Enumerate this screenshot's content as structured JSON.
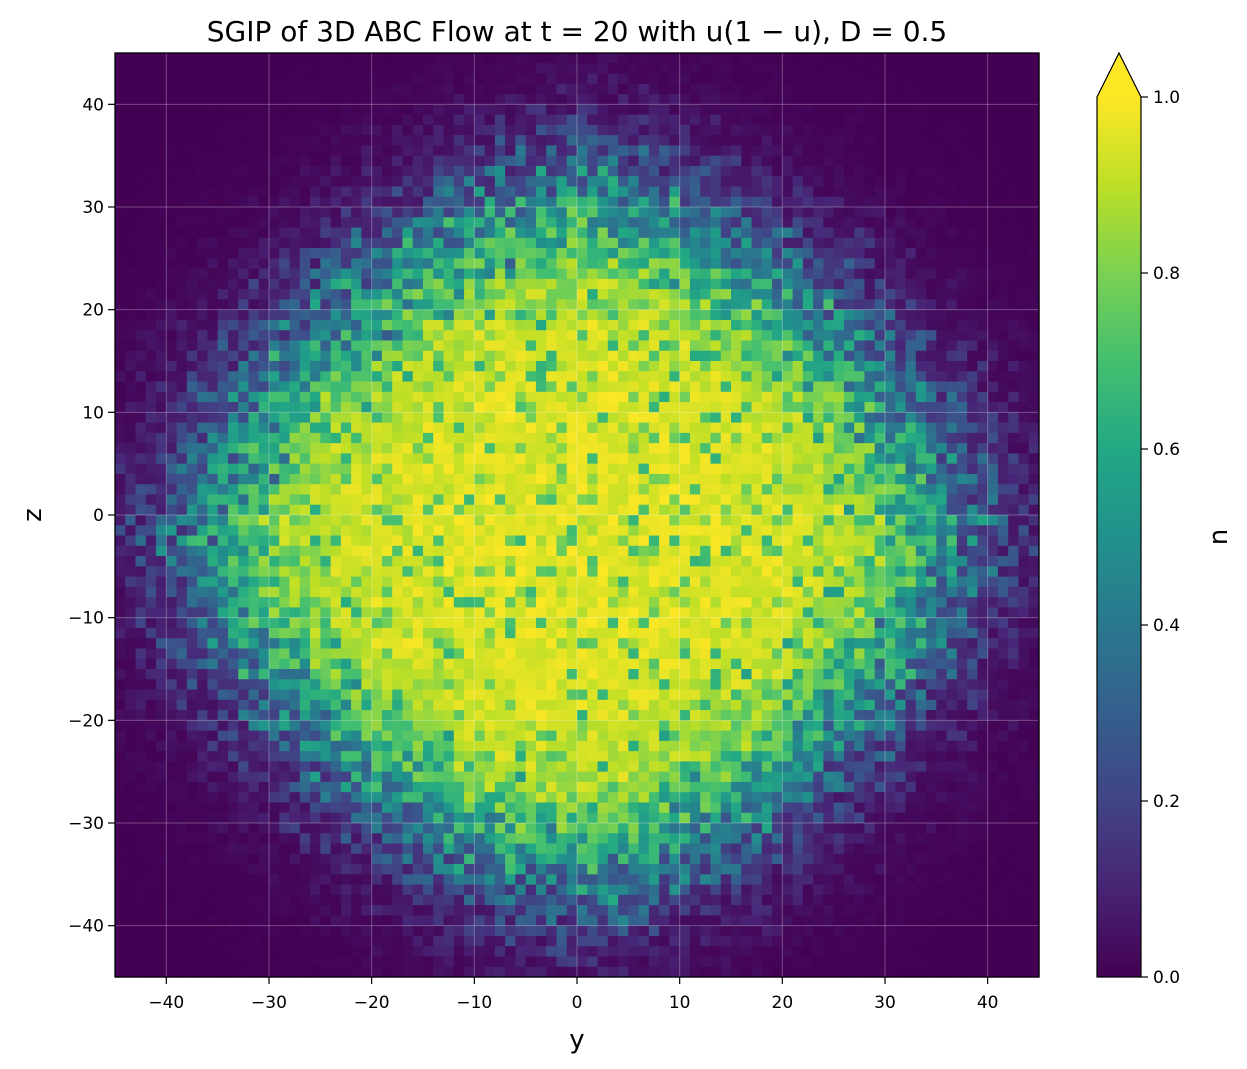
{
  "chart_data": {
    "type": "heatmap",
    "title": "SGIP of 3D ABC Flow at t = 20 with u(1 − u), D = 0.5",
    "xlabel": "y",
    "ylabel": "z",
    "xlim": [
      -45,
      45
    ],
    "ylim": [
      -45,
      45
    ],
    "x_ticks": [
      "−40",
      "−30",
      "−20",
      "−10",
      "0",
      "10",
      "20",
      "30",
      "40"
    ],
    "y_ticks": [
      "40",
      "30",
      "20",
      "10",
      "0",
      "−10",
      "−20",
      "−30",
      "−40"
    ],
    "grid": true,
    "grid_resolution": 90,
    "colormap": "viridis",
    "colorbar": {
      "label": "u",
      "range": [
        0.0,
        1.0
      ],
      "ticks": [
        "1.0",
        "0.8",
        "0.6",
        "0.4",
        "0.2",
        "0.0"
      ],
      "extend": "max"
    },
    "field": {
      "description": "noisy invasion front, u≈1 inside a roughly diamond/elliptic region centered near (0, −2), decaying to 0 outside",
      "center": [
        0,
        -2
      ],
      "half_width_y": 36,
      "half_width_z": 33,
      "front_width": 6
    }
  },
  "colors": {
    "viridis": [
      "#440154",
      "#482475",
      "#414487",
      "#355f8d",
      "#2a788e",
      "#21918c",
      "#22a884",
      "#44bf70",
      "#7ad151",
      "#bddf26",
      "#fde725"
    ]
  }
}
